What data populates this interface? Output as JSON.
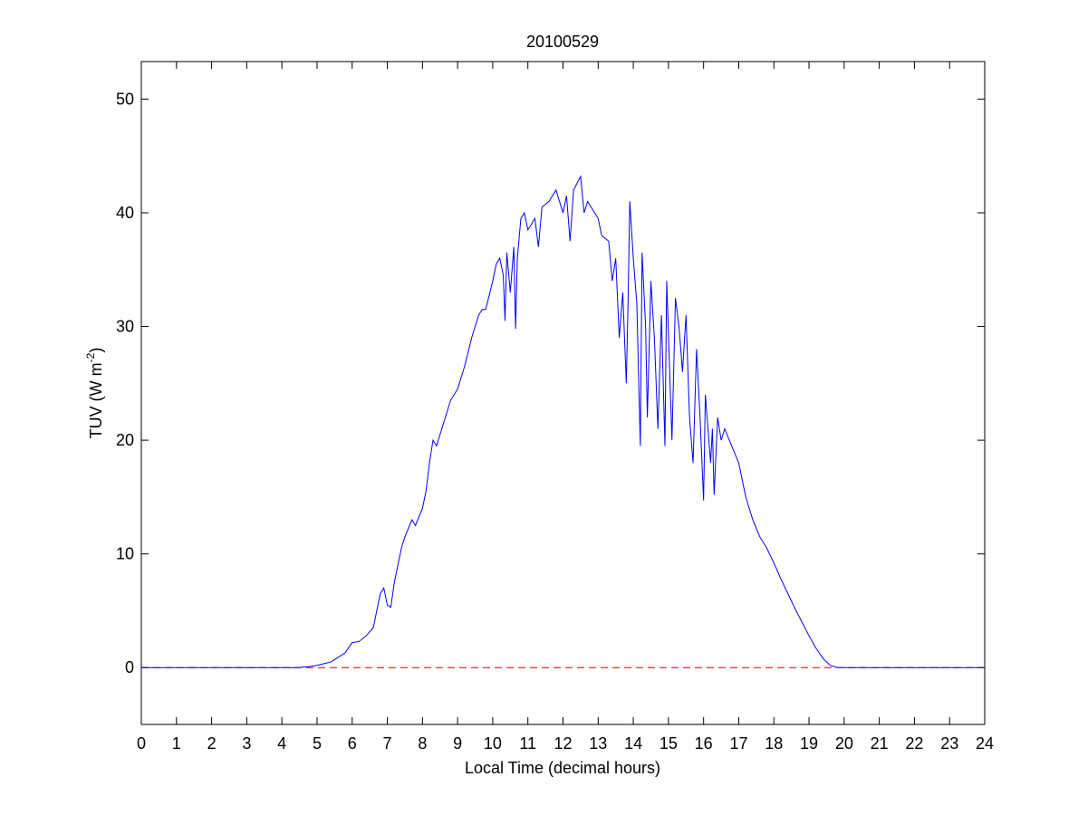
{
  "chart_data": {
    "type": "line",
    "title": "20100529",
    "xlabel": "Local Time (decimal hours)",
    "ylabel": [
      "TUV (W m",
      "-2",
      ")"
    ],
    "x": [
      0,
      4.5,
      4.6,
      4.8,
      5.0,
      5.2,
      5.4,
      5.6,
      5.8,
      6.0,
      6.2,
      6.4,
      6.6,
      6.8,
      6.9,
      7.0,
      7.1,
      7.2,
      7.4,
      7.5,
      7.7,
      7.8,
      8.0,
      8.1,
      8.2,
      8.3,
      8.4,
      8.6,
      8.8,
      9.0,
      9.2,
      9.4,
      9.6,
      9.7,
      9.8,
      10.0,
      10.1,
      10.2,
      10.3,
      10.35,
      10.4,
      10.5,
      10.6,
      10.65,
      10.7,
      10.8,
      10.9,
      11.0,
      11.2,
      11.3,
      11.4,
      11.6,
      11.8,
      12.0,
      12.1,
      12.2,
      12.3,
      12.5,
      12.6,
      12.7,
      12.8,
      13.0,
      13.1,
      13.3,
      13.4,
      13.5,
      13.6,
      13.7,
      13.8,
      13.85,
      13.9,
      14.0,
      14.1,
      14.2,
      14.25,
      14.35,
      14.4,
      14.5,
      14.6,
      14.7,
      14.8,
      14.9,
      14.95,
      15.1,
      15.2,
      15.3,
      15.4,
      15.5,
      15.6,
      15.7,
      15.8,
      15.9,
      16.0,
      16.05,
      16.1,
      16.2,
      16.25,
      16.3,
      16.4,
      16.5,
      16.6,
      16.8,
      17.0,
      17.2,
      17.4,
      17.6,
      17.8,
      18.0,
      18.2,
      18.4,
      18.6,
      18.8,
      19.0,
      19.2,
      19.4,
      19.6,
      19.8,
      20,
      24
    ],
    "series": [
      {
        "color": "#0000ff",
        "values": [
          0,
          0,
          0.05,
          0.1,
          0.2,
          0.35,
          0.5,
          0.9,
          1.3,
          2.2,
          2.3,
          2.8,
          3.5,
          6.5,
          7.0,
          5.5,
          5.3,
          7.5,
          10.5,
          11.5,
          13,
          12.5,
          14,
          15.5,
          18,
          20,
          19.5,
          21.5,
          23.5,
          24.5,
          26.5,
          29,
          31,
          31.5,
          31.5,
          34,
          35.5,
          36,
          34.5,
          30.5,
          36.5,
          33,
          37,
          29.8,
          36,
          39.5,
          40,
          38.5,
          39.5,
          37,
          40.5,
          41,
          42,
          40,
          41.5,
          37.5,
          42,
          43.2,
          40,
          41,
          40.5,
          39.5,
          38,
          37.5,
          34,
          36,
          29,
          33,
          25,
          32,
          41,
          36,
          32,
          19.5,
          36.5,
          30,
          22,
          34,
          29,
          21,
          31,
          19.5,
          34,
          20,
          32.5,
          30,
          26,
          31,
          22,
          18,
          28,
          22,
          14.7,
          24,
          22,
          18,
          21,
          15.2,
          22,
          20,
          21,
          19.5,
          18,
          15,
          13,
          11.5,
          10.5,
          9.2,
          7.8,
          6.5,
          5.2,
          4,
          2.8,
          1.7,
          0.8,
          0.2,
          0.02,
          0,
          0
        ]
      }
    ],
    "hline": {
      "y": 0,
      "color": "#d00000",
      "style": "dashed"
    },
    "xlim": [
      0,
      24
    ],
    "xticks": [
      0,
      1,
      2,
      3,
      4,
      5,
      6,
      7,
      8,
      9,
      10,
      11,
      12,
      13,
      14,
      15,
      16,
      17,
      18,
      19,
      20,
      21,
      22,
      23,
      24
    ],
    "ylim": [
      -5,
      53.3
    ],
    "yticks": [
      0,
      10,
      20,
      30,
      40,
      50
    ],
    "grid": false
  }
}
